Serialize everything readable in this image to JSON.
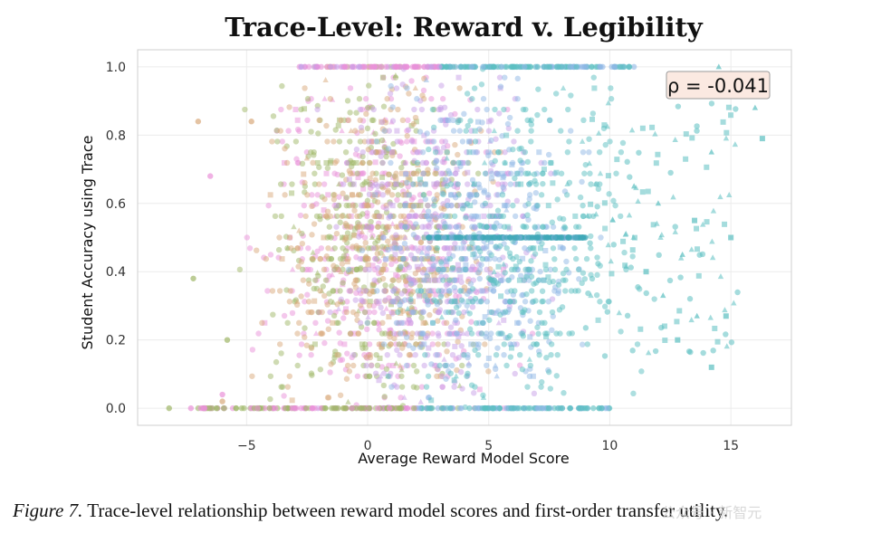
{
  "chart_data": {
    "type": "scatter",
    "title": "Trace-Level: Reward v. Legibility",
    "xlabel": "Average Reward Model Score",
    "ylabel": "Student Accuracy using Trace",
    "xlim": [
      -9.5,
      17.5
    ],
    "ylim": [
      -0.05,
      1.05
    ],
    "xticks": [
      -5,
      0,
      5,
      10,
      15
    ],
    "xtick_labels": [
      "−5",
      "0",
      "5",
      "10",
      "15"
    ],
    "yticks": [
      0.0,
      0.2,
      0.4,
      0.6,
      0.8,
      1.0
    ],
    "ytick_labels": [
      "0.0",
      "0.2",
      "0.4",
      "0.6",
      "0.8",
      "1.0"
    ],
    "grid": true,
    "annotation": {
      "label": "ρ = -0.041",
      "rho": -0.041,
      "placement": "top-right"
    },
    "series": [
      {
        "name": "pink cluster",
        "color": "#e991d9",
        "center_x": 0.5,
        "spread_x": 3.0
      },
      {
        "name": "olive cluster",
        "color": "#9fb768",
        "center_x": 0.0,
        "spread_x": 2.6
      },
      {
        "name": "tan cluster",
        "color": "#d9a97c",
        "center_x": 0.5,
        "spread_x": 2.8
      },
      {
        "name": "purple cluster",
        "color": "#c7a0e8",
        "center_x": 3.0,
        "spread_x": 2.6
      },
      {
        "name": "blue cluster",
        "color": "#8fb8e6",
        "center_x": 4.5,
        "spread_x": 2.6
      },
      {
        "name": "teal cluster",
        "color": "#5bbfc1",
        "center_x": 6.5,
        "spread_x": 3.0
      }
    ],
    "horizontal_bands": [
      {
        "y": 1.0,
        "x_range": [
          -3,
          11
        ]
      },
      {
        "y": 0.5,
        "x_range": [
          2.5,
          9
        ]
      },
      {
        "y": 0.0,
        "x_range": [
          -7,
          10
        ]
      }
    ],
    "outliers": [
      {
        "x": -7.2,
        "y": 0.38
      },
      {
        "x": -6.5,
        "y": 0.68
      },
      {
        "x": -7.0,
        "y": 0.84
      },
      {
        "x": -5.8,
        "y": 0.2
      },
      {
        "x": -6.0,
        "y": 0.04
      },
      {
        "x": -6.0,
        "y": 0.02
      },
      {
        "x": -8.2,
        "y": 0.0
      },
      {
        "x": -7.3,
        "y": 0.0
      },
      {
        "x": -4.8,
        "y": 0.84
      },
      {
        "x": 16.0,
        "y": 0.88
      },
      {
        "x": 16.3,
        "y": 0.79
      },
      {
        "x": 14.5,
        "y": 1.0
      },
      {
        "x": 14.2,
        "y": 0.12
      },
      {
        "x": 13.6,
        "y": 0.27
      },
      {
        "x": 14.8,
        "y": 0.27
      },
      {
        "x": 13.0,
        "y": 0.45
      },
      {
        "x": 12.8,
        "y": 0.2
      },
      {
        "x": 14.2,
        "y": 0.75
      },
      {
        "x": 13.5,
        "y": 0.55
      },
      {
        "x": 12.0,
        "y": 0.6
      },
      {
        "x": 11.5,
        "y": 0.4
      },
      {
        "x": 12.2,
        "y": 0.33
      },
      {
        "x": 15.0,
        "y": 0.5
      },
      {
        "x": 11.0,
        "y": 0.65
      }
    ]
  },
  "caption": {
    "label": "Figure 7.",
    "text": "Trace-level relationship between reward model scores and first-order transfer utility."
  },
  "watermark": "公众号 · 新智元"
}
